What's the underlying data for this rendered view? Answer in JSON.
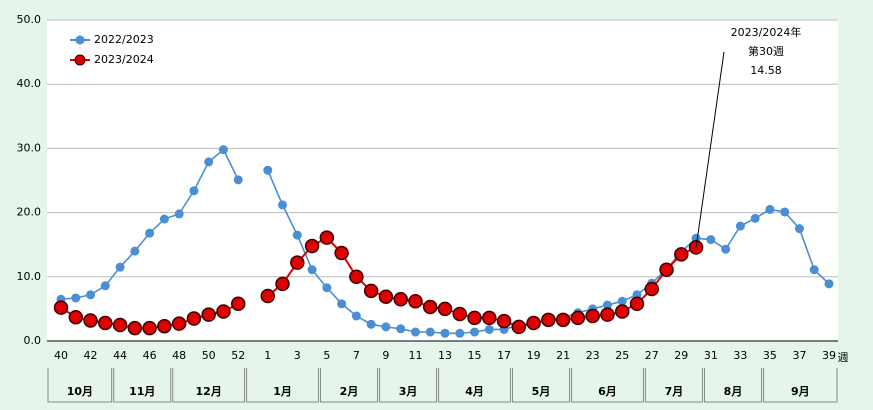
{
  "chart_data": {
    "type": "line",
    "categories": [
      "40",
      null,
      "42",
      null,
      "44",
      null,
      "46",
      null,
      "48",
      null,
      "50",
      null,
      "52",
      null,
      "1",
      null,
      "3",
      null,
      "5",
      null,
      "7",
      null,
      "9",
      null,
      "11",
      null,
      "13",
      null,
      "15",
      null,
      "17",
      null,
      "19",
      null,
      "21",
      null,
      "23",
      null,
      "25",
      null,
      "27",
      null,
      "29",
      null,
      "31",
      null,
      "33",
      null,
      "35",
      null,
      "37",
      null,
      "39"
    ],
    "x_label": "週",
    "month_groups": [
      {
        "label": "10月",
        "weeks": 4
      },
      {
        "label": "11月",
        "weeks": 4
      },
      {
        "label": "12月",
        "weeks": 5
      },
      {
        "label": "1月",
        "weeks": 5
      },
      {
        "label": "2月",
        "weeks": 4
      },
      {
        "label": "3月",
        "weeks": 4
      },
      {
        "label": "4月",
        "weeks": 5
      },
      {
        "label": "5月",
        "weeks": 4
      },
      {
        "label": "6月",
        "weeks": 5
      },
      {
        "label": "7月",
        "weeks": 4
      },
      {
        "label": "8月",
        "weeks": 4
      },
      {
        "label": "9月",
        "weeks": 5
      }
    ],
    "series": [
      {
        "name": "2022/2023",
        "color": "#4a8fd3",
        "values": [
          6.5,
          6.7,
          7.2,
          8.6,
          11.5,
          14.0,
          16.8,
          19.0,
          19.8,
          23.4,
          27.9,
          29.8,
          25.1,
          null,
          26.6,
          21.2,
          16.5,
          11.1,
          8.3,
          5.8,
          3.9,
          2.6,
          2.2,
          1.9,
          1.4,
          1.4,
          1.2,
          1.2,
          1.4,
          1.8,
          1.8,
          2.5,
          2.8,
          3.3,
          3.6,
          4.4,
          5.0,
          5.6,
          6.2,
          7.2,
          9.0,
          11.2,
          13.9,
          16.0,
          15.8,
          14.3,
          17.9,
          19.1,
          20.5,
          20.1,
          17.5,
          11.1,
          8.9
        ]
      },
      {
        "name": "2023/2024",
        "color": "#e00000",
        "values": [
          5.2,
          3.7,
          3.2,
          2.8,
          2.5,
          2.0,
          2.0,
          2.3,
          2.7,
          3.5,
          4.1,
          4.6,
          5.8,
          null,
          7.0,
          8.9,
          12.2,
          14.8,
          16.1,
          13.7,
          10.0,
          7.8,
          6.9,
          6.5,
          6.2,
          5.3,
          5.0,
          4.2,
          3.6,
          3.6,
          3.1,
          2.2,
          2.8,
          3.3,
          3.3,
          3.6,
          3.9,
          4.1,
          4.6,
          5.8,
          8.1,
          11.1,
          13.5,
          14.58,
          null,
          null,
          null,
          null,
          null,
          null,
          null,
          null,
          null
        ]
      }
    ],
    "ylim": [
      0,
      50
    ],
    "yticks": [
      {
        "value": 0,
        "label": "0.0"
      },
      {
        "value": 10,
        "label": "10.0"
      },
      {
        "value": 20,
        "label": "20.0"
      },
      {
        "value": 30,
        "label": "30.0"
      },
      {
        "value": 40,
        "label": "40.0"
      },
      {
        "value": 50,
        "label": "50.0"
      }
    ],
    "grid": true,
    "legend": "upper left",
    "annotation": {
      "lines": [
        "2023/2024年",
        "第30週",
        "14.58"
      ]
    }
  }
}
